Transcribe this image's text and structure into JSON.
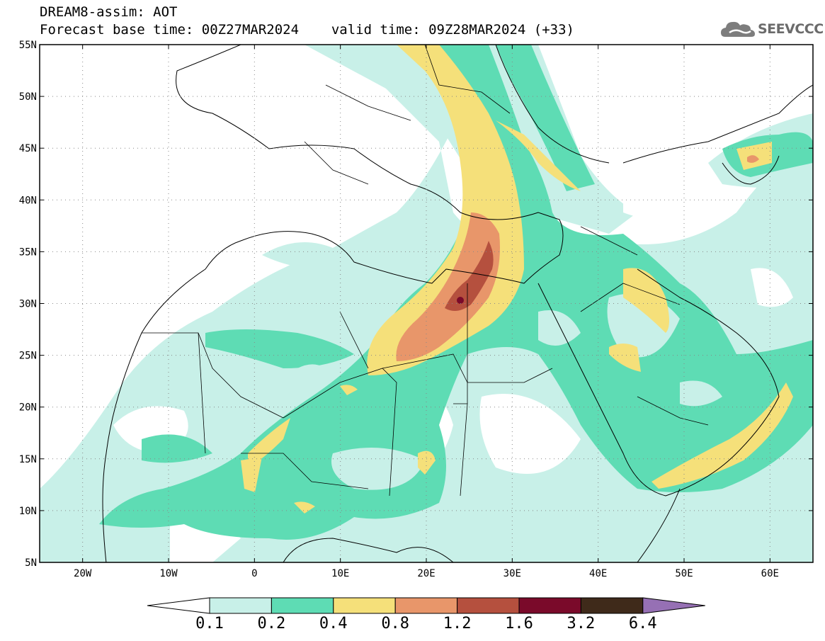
{
  "header": {
    "model_line": "DREAM8-assim: AOT",
    "base_time": "Forecast base time: 00Z27MAR2024",
    "valid_time": "valid time: 09Z28MAR2024 (+33)"
  },
  "logo": {
    "text": "SEEVCCC",
    "icon": "cloud-icon"
  },
  "map": {
    "lat_labels": [
      "55N",
      "50N",
      "45N",
      "40N",
      "35N",
      "30N",
      "25N",
      "20N",
      "15N",
      "10N",
      "5N"
    ],
    "lat_values": [
      55,
      50,
      45,
      40,
      35,
      30,
      25,
      20,
      15,
      10,
      5
    ],
    "lon_labels": [
      "20W",
      "10W",
      "0",
      "10E",
      "20E",
      "30E",
      "40E",
      "50E",
      "60E"
    ],
    "lon_values": [
      -20,
      -10,
      0,
      10,
      20,
      30,
      40,
      50,
      60
    ],
    "lat_range": [
      5,
      55
    ],
    "lon_range": [
      -25,
      65
    ],
    "grid": "dotted"
  },
  "colorbar": {
    "labels": [
      "0.1",
      "0.2",
      "0.4",
      "0.8",
      "1.2",
      "1.6",
      "3.2",
      "6.4"
    ],
    "colors": [
      "#c8f0e8",
      "#5edcb4",
      "#f5e07a",
      "#e8966a",
      "#b5503e",
      "#7a0a2a",
      "#3f2a1a"
    ],
    "under_color": "#ffffff",
    "over_color": "#9670b4"
  },
  "palette": {
    "light": "#c8f0e8",
    "green": "#5edcb4",
    "yellow": "#f5e07a",
    "orange": "#e8966a",
    "rust": "#b5503e",
    "maroon": "#7a0a2a"
  }
}
